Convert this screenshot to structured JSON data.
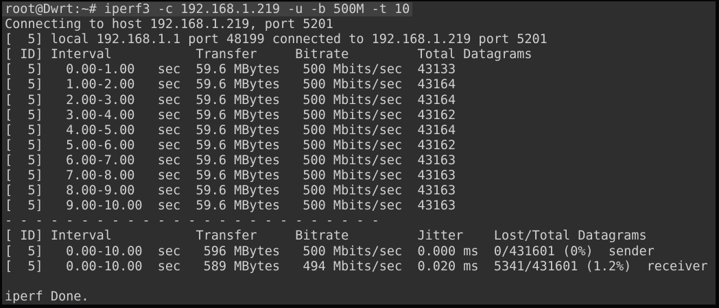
{
  "colors": {
    "page_bg": "#060606",
    "terminal_bg": "#2e2e2e",
    "selection_bg": "#404040",
    "text": "#d0d0d0"
  },
  "terminal": {
    "command_line": "root@Dwrt:~# iperf3 -c 192.168.1.219 -u -b 500M -t 10",
    "connecting_line": "Connecting to host 192.168.1.219, port 5201",
    "connected_line": "[  5] local 192.168.1.1 port 48199 connected to 192.168.1.219 port 5201",
    "interval_table": {
      "header": "[ ID] Interval           Transfer     Bitrate         Total Datagrams",
      "rows": [
        "[  5]   0.00-1.00   sec  59.6 MBytes   500 Mbits/sec  43133",
        "[  5]   1.00-2.00   sec  59.6 MBytes   500 Mbits/sec  43164",
        "[  5]   2.00-3.00   sec  59.6 MBytes   500 Mbits/sec  43164",
        "[  5]   3.00-4.00   sec  59.6 MBytes   500 Mbits/sec  43162",
        "[  5]   4.00-5.00   sec  59.6 MBytes   500 Mbits/sec  43164",
        "[  5]   5.00-6.00   sec  59.6 MBytes   500 Mbits/sec  43162",
        "[  5]   6.00-7.00   sec  59.6 MBytes   500 Mbits/sec  43163",
        "[  5]   7.00-8.00   sec  59.6 MBytes   500 Mbits/sec  43163",
        "[  5]   8.00-9.00   sec  59.6 MBytes   500 Mbits/sec  43163",
        "[  5]   9.00-10.00  sec  59.6 MBytes   500 Mbits/sec  43163"
      ]
    },
    "separator": "- - - - - - - - - - - - - - - - - - - - - - - - -",
    "summary_table": {
      "header": "[ ID] Interval           Transfer     Bitrate         Jitter    Lost/Total Datagrams",
      "rows": [
        "[  5]   0.00-10.00  sec   596 MBytes   500 Mbits/sec  0.000 ms  0/431601 (0%)  sender",
        "[  5]   0.00-10.00  sec   589 MBytes   494 Mbits/sec  0.020 ms  5341/431601 (1.2%)  receiver"
      ]
    },
    "done_line": "iperf Done."
  }
}
